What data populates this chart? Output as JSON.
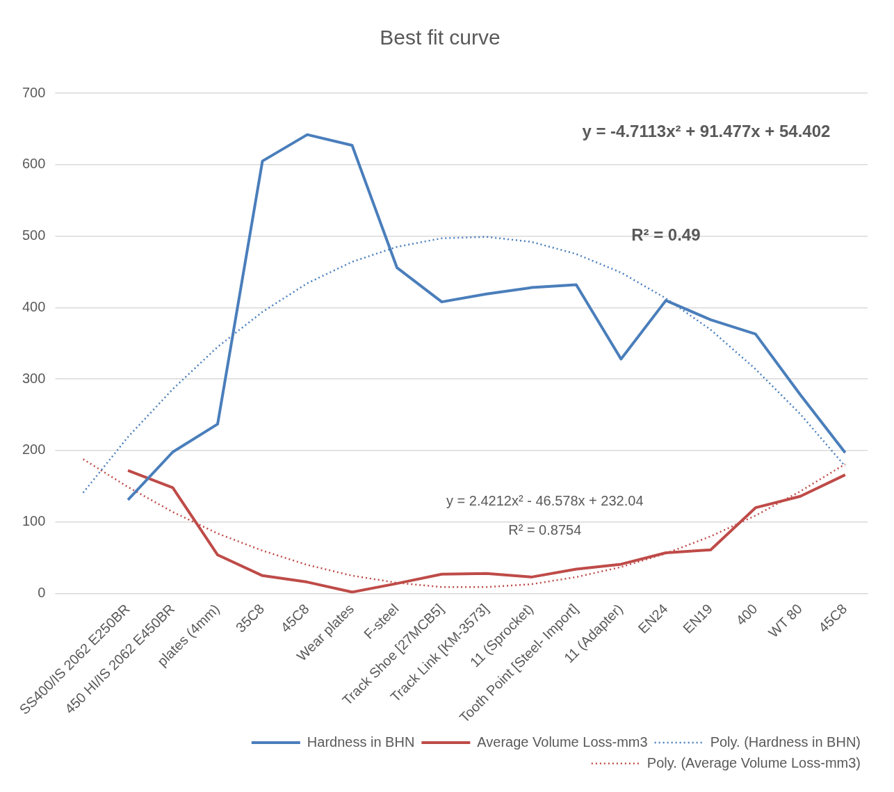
{
  "chart_data": {
    "type": "line",
    "title": "Best fit curve",
    "categories": [
      null,
      "SS400/IS 2062 E250BR",
      "450 HI/IS 2062 E450BR",
      "plates (4mm)",
      "35C8",
      "45C8",
      "Wear plates",
      "F-steel",
      "Track Shoe [27MCB5]",
      "Track Link [KM-3573]",
      "11 (Sprocket)",
      "Tooth Point [Steel- Import]",
      "11 (Adapter)",
      "EN24",
      "EN19",
      "400",
      "WT 80",
      "45C8"
    ],
    "series": [
      {
        "name": "Hardness in BHN",
        "color": "#4a7ebb",
        "line_style": "solid",
        "values": [
          null,
          131,
          198,
          237,
          605,
          642,
          627,
          456,
          408,
          419,
          428,
          432,
          328,
          410,
          383,
          363,
          278,
          197
        ]
      },
      {
        "name": "Average Volume Loss-mm3",
        "color": "#be4b48",
        "line_style": "solid",
        "values": [
          null,
          172,
          148,
          54,
          25,
          16,
          2,
          14,
          27,
          28,
          23,
          34,
          41,
          57,
          61,
          120,
          136,
          166
        ]
      },
      {
        "name": "Poly. (Hardness in BHN)",
        "color": "#4a7ebb",
        "line_style": "dotted",
        "values": [
          141,
          219,
          286,
          345,
          394,
          434,
          464,
          485,
          497,
          499,
          492,
          475,
          449,
          413,
          369,
          314,
          251,
          178
        ]
      },
      {
        "name": "Poly. (Average Volume Loss-mm3)",
        "color": "#be4b48",
        "line_style": "dotted",
        "values": [
          188,
          149,
          114,
          84,
          60,
          40,
          25,
          15,
          9,
          9,
          13,
          23,
          37,
          56,
          80,
          109,
          143,
          181
        ]
      }
    ],
    "ylim": [
      0,
      700
    ],
    "yticks": [
      0,
      100,
      200,
      300,
      400,
      500,
      600,
      700
    ],
    "grid": "y",
    "marker": "none",
    "legend": "bottom right",
    "annotations": [
      "y = -4.7113x² + 91.477x + 54.402",
      "R² = 0.49",
      "y = 2.4212x² - 46.578x + 232.04",
      "R² = 0.8754"
    ]
  }
}
